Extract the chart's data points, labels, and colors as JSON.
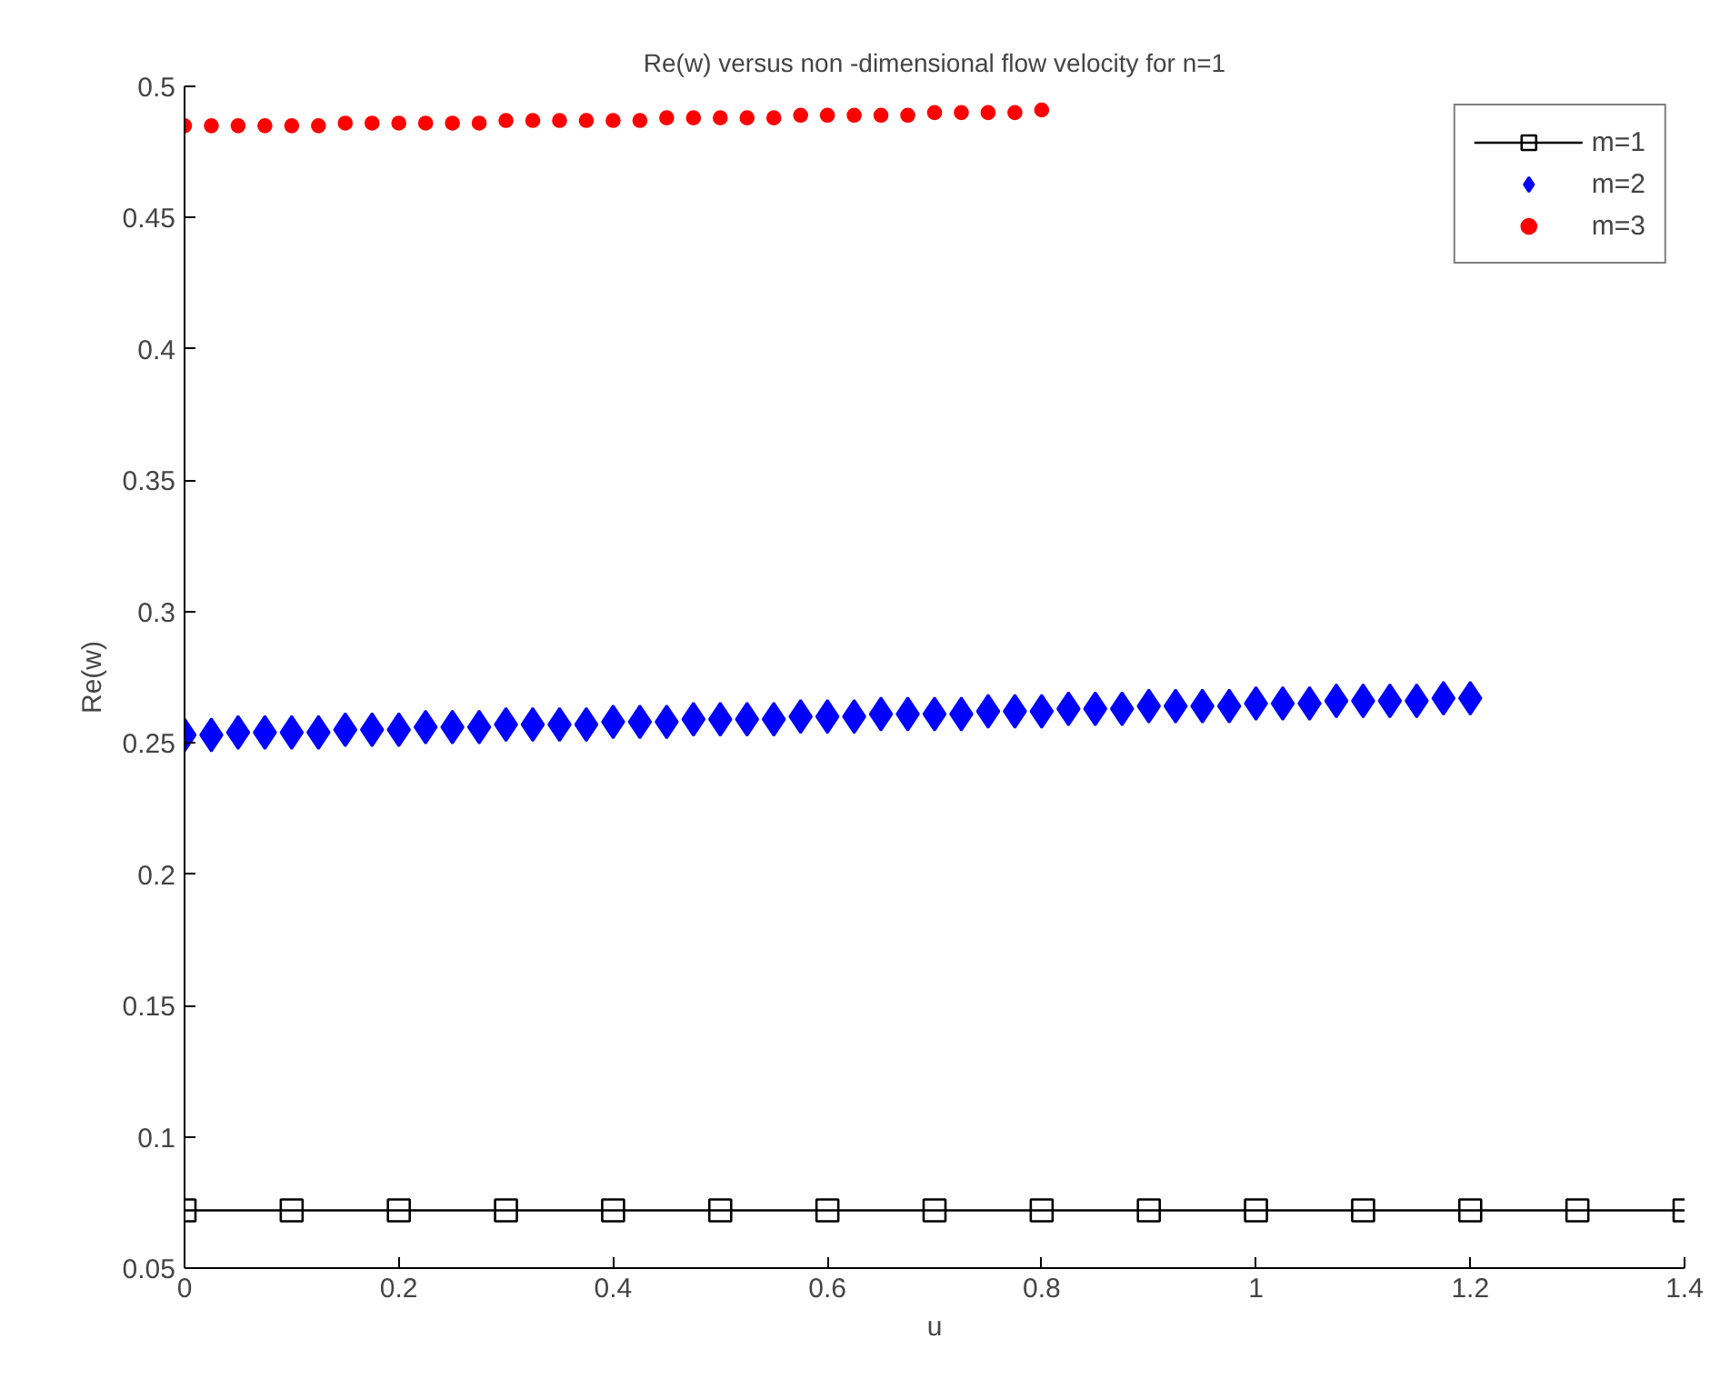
{
  "chart_data": {
    "type": "line",
    "title": "Re(w) versus non -dimensional flow velocity for n=1",
    "xlabel": "u",
    "ylabel": "Re(w)",
    "xlim": [
      0,
      1.4
    ],
    "xticks": [
      0,
      0.2,
      0.4,
      0.6,
      0.8,
      1,
      1.2,
      1.4
    ],
    "ylim": [
      0.05,
      0.5
    ],
    "yticks": [
      0.05,
      0.1,
      0.15,
      0.2,
      0.25,
      0.3,
      0.35,
      0.4,
      0.45,
      0.5
    ],
    "grid": false,
    "legend": "top right",
    "series": [
      {
        "name": "m=1",
        "marker": "square",
        "color": "#000000",
        "x": [
          0,
          0.1,
          0.2,
          0.3,
          0.4,
          0.5,
          0.6,
          0.7,
          0.8,
          0.9,
          1,
          1.1,
          1.2,
          1.3,
          1.4
        ],
        "values": [
          0.072,
          0.072,
          0.072,
          0.072,
          0.072,
          0.072,
          0.072,
          0.072,
          0.072,
          0.072,
          0.072,
          0.072,
          0.072,
          0.072,
          0.072
        ]
      },
      {
        "name": "m=2",
        "type": "scatter",
        "marker": "diamond",
        "color": "#0000ff",
        "x": [
          0,
          0.025,
          0.05,
          0.075,
          0.1,
          0.125,
          0.15,
          0.175,
          0.2,
          0.225,
          0.25,
          0.275,
          0.3,
          0.325,
          0.35,
          0.375,
          0.4,
          0.425,
          0.45,
          0.475,
          0.5,
          0.525,
          0.55,
          0.575,
          0.6,
          0.625,
          0.65,
          0.675,
          0.7,
          0.725,
          0.75,
          0.775,
          0.8,
          0.825,
          0.85,
          0.875,
          0.9,
          0.925,
          0.95,
          0.975,
          1,
          1.025,
          1.05,
          1.075,
          1.1,
          1.125,
          1.15,
          1.175,
          1.2
        ],
        "values": [
          0.253,
          0.253,
          0.254,
          0.254,
          0.254,
          0.254,
          0.255,
          0.255,
          0.255,
          0.256,
          0.256,
          0.256,
          0.257,
          0.257,
          0.257,
          0.257,
          0.258,
          0.258,
          0.258,
          0.259,
          0.259,
          0.259,
          0.259,
          0.26,
          0.26,
          0.26,
          0.261,
          0.261,
          0.261,
          0.261,
          0.262,
          0.262,
          0.262,
          0.263,
          0.263,
          0.263,
          0.264,
          0.264,
          0.264,
          0.264,
          0.265,
          0.265,
          0.265,
          0.266,
          0.266,
          0.266,
          0.266,
          0.267,
          0.267
        ]
      },
      {
        "name": "m=3",
        "type": "scatter",
        "marker": "circle",
        "color": "#ff0000",
        "x": [
          0,
          0.025,
          0.05,
          0.075,
          0.1,
          0.125,
          0.15,
          0.175,
          0.2,
          0.225,
          0.25,
          0.275,
          0.3,
          0.325,
          0.35,
          0.375,
          0.4,
          0.425,
          0.45,
          0.475,
          0.5,
          0.525,
          0.55,
          0.575,
          0.6,
          0.625,
          0.65,
          0.675,
          0.7,
          0.725,
          0.75,
          0.775,
          0.8
        ],
        "values": [
          0.485,
          0.485,
          0.485,
          0.485,
          0.485,
          0.485,
          0.486,
          0.486,
          0.486,
          0.486,
          0.486,
          0.486,
          0.487,
          0.487,
          0.487,
          0.487,
          0.487,
          0.487,
          0.488,
          0.488,
          0.488,
          0.488,
          0.488,
          0.489,
          0.489,
          0.489,
          0.489,
          0.489,
          0.49,
          0.49,
          0.49,
          0.49,
          0.491
        ]
      }
    ]
  }
}
